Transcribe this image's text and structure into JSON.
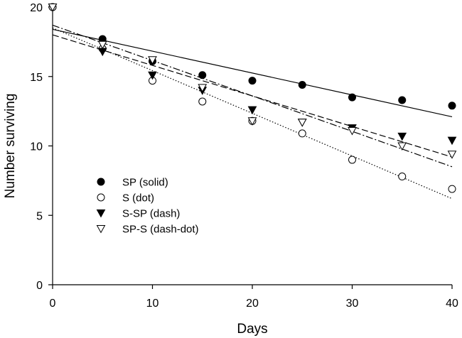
{
  "chart_data": {
    "type": "scatter",
    "xlabel": "Days",
    "ylabel": "Number surviving",
    "xlim": [
      0,
      40
    ],
    "ylim": [
      0,
      20
    ],
    "xticks": [
      0,
      10,
      20,
      30,
      40
    ],
    "yticks": [
      0,
      5,
      10,
      15,
      20
    ],
    "grid": false,
    "legend_position": "lower-left",
    "series": [
      {
        "name": "SP (solid)",
        "marker": "filled-circle",
        "line_style": "solid",
        "x": [
          0,
          5,
          10,
          15,
          20,
          25,
          30,
          35,
          40
        ],
        "y": [
          20,
          17.7,
          16.1,
          15.1,
          14.7,
          14.4,
          13.5,
          13.3,
          12.9
        ],
        "fit": [
          18.4,
          12.1
        ]
      },
      {
        "name": "S (dot)",
        "marker": "open-circle",
        "line_style": "dotted",
        "x": [
          0,
          5,
          10,
          15,
          20,
          25,
          30,
          35,
          40
        ],
        "y": [
          20,
          17.0,
          14.7,
          13.2,
          11.8,
          10.9,
          9.0,
          7.8,
          6.9
        ],
        "fit": [
          18.5,
          6.2
        ]
      },
      {
        "name": "S-SP (dash)",
        "marker": "filled-triangle-down",
        "line_style": "dashed",
        "x": [
          0,
          5,
          10,
          15,
          20,
          25,
          30,
          35,
          40
        ],
        "y": [
          20,
          16.8,
          15.1,
          14.0,
          12.6,
          11.7,
          11.3,
          10.7,
          10.4
        ],
        "fit": [
          18.0,
          9.2
        ]
      },
      {
        "name": "SP-S (dash-dot)",
        "marker": "open-triangle-down",
        "line_style": "dash-dot",
        "x": [
          0,
          5,
          10,
          15,
          20,
          25,
          30,
          35,
          40
        ],
        "y": [
          20,
          17.3,
          16.2,
          14.2,
          11.8,
          11.7,
          11.1,
          10.0,
          9.4
        ],
        "fit": [
          18.7,
          8.5
        ]
      }
    ]
  }
}
